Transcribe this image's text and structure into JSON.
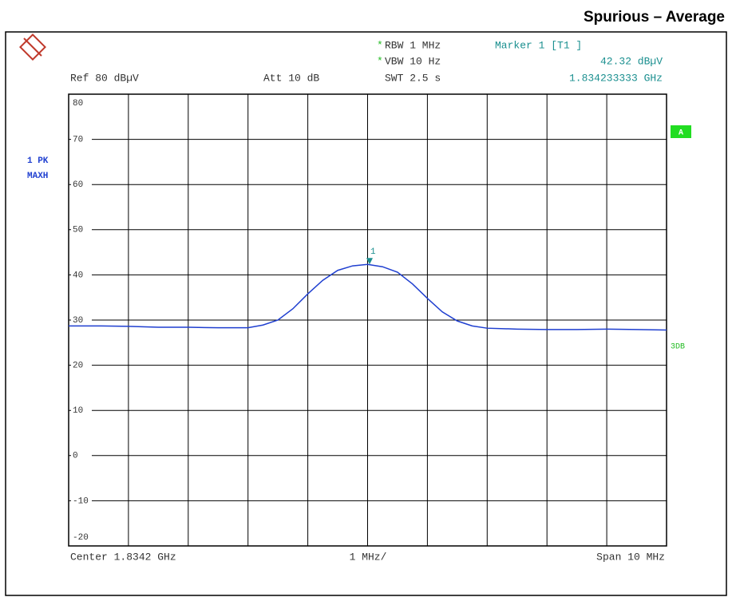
{
  "chart_data": {
    "type": "line",
    "title": "Spurious – Average",
    "star": "*",
    "settings": {
      "rbw": "RBW 1 MHz",
      "vbw": "VBW 10 Hz",
      "swt": "SWT 2.5 s",
      "ref": "Ref  80 dBµV",
      "att": "Att  10 dB"
    },
    "trace_labels": [
      "1 PK",
      "MAXH"
    ],
    "side_labels": {
      "a": "A",
      "db": "3DB"
    },
    "footer": {
      "center": "Center 1.8342 GHz",
      "div": "1 MHz/",
      "span": "Span 10 MHz"
    },
    "marker": {
      "title": "Marker 1 [T1 ]",
      "label": "1",
      "x": 1.834233333,
      "value": 42.32,
      "value_label": "42.32 dBµV",
      "x_label": "1.834233333 GHz",
      "color": "#1a8f8f"
    },
    "xlim": [
      1.8292,
      1.8392
    ],
    "ylim": [
      -20,
      80
    ],
    "yticks": [
      80,
      70,
      60,
      50,
      40,
      30,
      20,
      10,
      0,
      -10,
      -20
    ],
    "grid": true,
    "series": [
      {
        "name": "1 PK",
        "color": "#1f3fd0",
        "x": [
          1.8292,
          1.8297,
          1.8302,
          1.8307,
          1.8312,
          1.8317,
          1.8322,
          1.83245,
          1.8327,
          1.83295,
          1.8332,
          1.83345,
          1.8337,
          1.83395,
          1.8342,
          1.83445,
          1.8347,
          1.83495,
          1.8352,
          1.83545,
          1.8357,
          1.83595,
          1.8362,
          1.8367,
          1.8372,
          1.8377,
          1.8382,
          1.8387,
          1.8392
        ],
        "values": [
          28.7,
          28.7,
          28.6,
          28.4,
          28.4,
          28.3,
          28.3,
          28.9,
          30.0,
          32.5,
          35.8,
          38.8,
          41.0,
          42.0,
          42.32,
          41.8,
          40.6,
          38.0,
          34.8,
          31.8,
          29.8,
          28.7,
          28.2,
          28.0,
          27.9,
          27.9,
          28.0,
          27.9,
          27.8
        ]
      }
    ]
  }
}
